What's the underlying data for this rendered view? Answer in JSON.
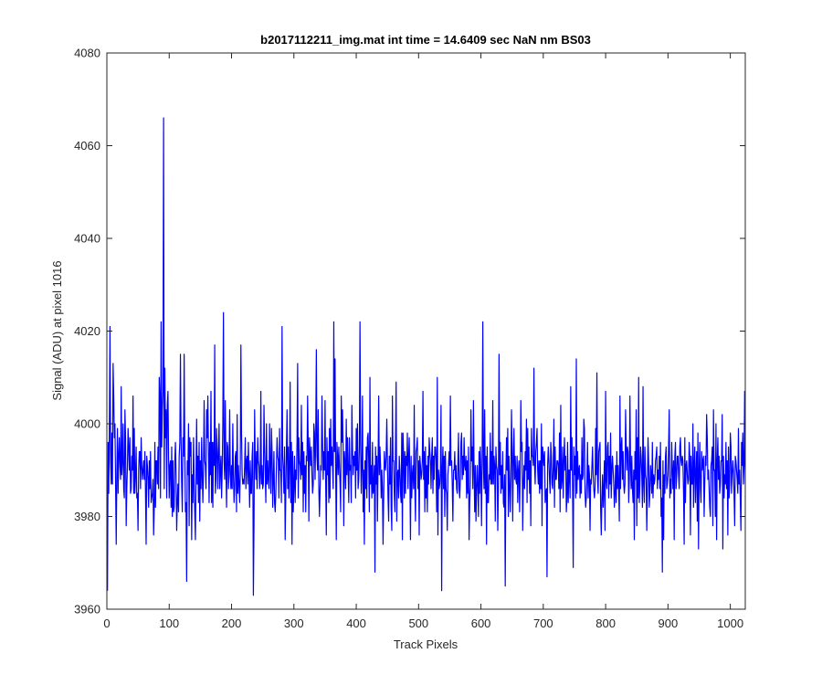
{
  "chart_data": {
    "type": "line",
    "title": "b2017112211_img.mat int time = 14.6409 sec  NaN nm BS03",
    "xlabel": "Track Pixels",
    "ylabel": "Signal (ADU) at pixel 1016",
    "xlim": [
      0,
      1024
    ],
    "ylim": [
      3960,
      4080
    ],
    "xticks": [
      0,
      100,
      200,
      300,
      400,
      500,
      600,
      700,
      800,
      900,
      1000
    ],
    "xtick_labels": [
      "0",
      "100",
      "200",
      "300",
      "400",
      "500",
      "600",
      "700",
      "800",
      "900",
      "1000"
    ],
    "yticks": [
      3960,
      3980,
      4000,
      4020,
      4040,
      4060,
      4080
    ],
    "ytick_labels": [
      "3960",
      "3980",
      "4000",
      "4020",
      "4040",
      "4060",
      "4080"
    ],
    "grid": false,
    "legend": "none",
    "series": [
      {
        "color": "#0000ff",
        "values": [
          3964,
          3996,
          3985,
          3999,
          4021,
          3992,
          3987,
          3998,
          3987,
          4013,
          4006,
          3997,
          4000,
          3987,
          3974,
          3989,
          3999,
          3985,
          3993,
          3997,
          3991,
          3988,
          4008,
          3989,
          3992,
          4000,
          3986,
          3984,
          4003,
          3997,
          3978,
          3986,
          3991,
          3999,
          3995,
          3990,
          3997,
          3985,
          3986,
          3993,
          3990,
          4006,
          3985,
          3999,
          3985,
          3989,
          3995,
          3984,
          3985,
          3977,
          3990,
          3994,
          3994,
          3986,
          3997,
          3991,
          3988,
          3990,
          3992,
          3988,
          3994,
          3985,
          3974,
          3993,
          3991,
          3988,
          3982,
          3992,
          3986,
          3994,
          3983,
          3984,
          3985,
          3988,
          3976,
          3982,
          3996,
          3982,
          3992,
          3992,
          3987,
          3995,
          3986,
          4010,
          4006,
          3984,
          4022,
          3995,
          4003,
          4007,
          4066,
          3986,
          4012,
          3997,
          4003,
          3984,
          4004,
          4007,
          3993,
          3984,
          3991,
          3992,
          3982,
          3995,
          3980,
          3992,
          3981,
          3982,
          3992,
          3996,
          3989,
          3977,
          3983,
          3987,
          3981,
          3993,
          3996,
          4015,
          3997,
          3987,
          3981,
          3997,
          3993,
          4015,
          3994,
          3981,
          3983,
          3966,
          3992,
          3989,
          4000,
          3978,
          3997,
          3993,
          3996,
          3975,
          3989,
          3983,
          3997,
          3987,
          3981,
          3975,
          3989,
          4001,
          3987,
          3993,
          3983,
          3996,
          3979,
          3992,
          3986,
          3997,
          3989,
          3983,
          3991,
          4005,
          3992,
          3991,
          3986,
          4003,
          3997,
          4006,
          3994,
          3983,
          3996,
          3989,
          4007,
          3983,
          3996,
          3982,
          3996,
          3991,
          4017,
          3985,
          3988,
          3999,
          3994,
          3986,
          3994,
          4000,
          3986,
          3990,
          3993,
          3984,
          3990,
          4000,
          4024,
          3992,
          3988,
          4005,
          3990,
          3982,
          3996,
          3995,
          3986,
          3990,
          4003,
          3989,
          3986,
          3991,
          3986,
          4000,
          3989,
          3983,
          3986,
          3993,
          3994,
          3981,
          4002,
          3985,
          3991,
          3987,
          3983,
          3990,
          4017,
          3998,
          3989,
          3987,
          3988,
          3987,
          3991,
          3997,
          3986,
          3992,
          3993,
          3987,
          3996,
          3989,
          3982,
          3992,
          3985,
          3985,
          3993,
          3996,
          3963,
          3978,
          4003,
          3992,
          3988,
          3994,
          3986,
          3997,
          3992,
          3991,
          3986,
          3989,
          4007,
          3987,
          3991,
          3986,
          3987,
          4004,
          3995,
          3989,
          3983,
          4000,
          3987,
          3992,
          3988,
          3986,
          4000,
          3991,
          3985,
          3999,
          3994,
          3982,
          3988,
          3994,
          3983,
          3981,
          3985,
          3991,
          3997,
          3993,
          3992,
          3984,
          3999,
          3990,
          3990,
          3983,
          4021,
          3993,
          3990,
          3985,
          3995,
          3975,
          3985,
          3994,
          4003,
          3986,
          3995,
          3984,
          3991,
          4009,
          3983,
          3996,
          3974,
          3994,
          3981,
          3987,
          3993,
          3983,
          3990,
          3988,
          3996,
          4013,
          3984,
          3997,
          3992,
          3991,
          3988,
          4004,
          3989,
          3996,
          3981,
          3994,
          3985,
          3991,
          3981,
          3993,
          3992,
          4006,
          3995,
          3979,
          3997,
          3994,
          3991,
          3995,
          3989,
          3985,
          3987,
          4000,
          3998,
          3988,
          3997,
          4016,
          3993,
          3990,
          4003,
          3986,
          3980,
          3986,
          3991,
          3990,
          4006,
          3996,
          3988,
          3994,
          3990,
          4005,
          3987,
          3976,
          3997,
          3989,
          3994,
          3983,
          3999,
          3984,
          4001,
          3991,
          3995,
          3991,
          3986,
          4022,
          3994,
          4014,
          3991,
          3975,
          3996,
          3993,
          3989,
          3995,
          3991,
          3987,
          3981,
          4006,
          3996,
          4003,
          3995,
          3978,
          3994,
          3991,
          3986,
          4001,
          3989,
          3997,
          3990,
          3983,
          3997,
          3990,
          3991,
          3983,
          4004,
          3995,
          3989,
          3993,
          3991,
          3994,
          3984,
          3999,
          3990,
          4000,
          3986,
          3988,
          3995,
          4022,
          3995,
          3985,
          3991,
          4006,
          3981,
          3990,
          3974,
          3992,
          3986,
          3995,
          3984,
          3997,
          3998,
          3992,
          3981,
          4010,
          3987,
          3991,
          3984,
          3996,
          3985,
          3986,
          3991,
          3968,
          3995,
          3987,
          3993,
          3979,
          3991,
          4006,
          3989,
          3995,
          3991,
          3984,
          3990,
          3986,
          3974,
          3984,
          3994,
          3991,
          3990,
          3993,
          4001,
          3992,
          3984,
          3979,
          3993,
          3987,
          3997,
          3982,
          3977,
          4006,
          3992,
          3992,
          3985,
          3981,
          3995,
          4009,
          3979,
          3989,
          3990,
          3984,
          3993,
          3990,
          3985,
          3983,
          3998,
          3975,
          3998,
          3993,
          3984,
          3994,
          3985,
          3993,
          3991,
          3998,
          3986,
          3993,
          3997,
          3989,
          3975,
          3993,
          3984,
          3989,
          3991,
          3986,
          4004,
          3986,
          3979,
          3994,
          3995,
          3997,
          3986,
          3992,
          3976,
          3993,
          3991,
          3988,
          3989,
          3992,
          4007,
          3988,
          3994,
          3981,
          3995,
          3984,
          3991,
          3981,
          3993,
          3987,
          3997,
          3994,
          3992,
          3986,
          3993,
          3997,
          3985,
          3993,
          3988,
          3995,
          3995,
          3992,
          3981,
          4010,
          3976,
          3990,
          3986,
          3987,
          3990,
          4004,
          3964,
          3990,
          3995,
          3986,
          3993,
          3980,
          3994,
          3986,
          3985,
          3977,
          3989,
          3991,
          3994,
          3991,
          4006,
          3991,
          3992,
          3987,
          3979,
          3990,
          3990,
          3994,
          3988,
          3991,
          3986,
          3985,
          3991,
          3998,
          3986,
          3984,
          3988,
          3996,
          3998,
          3988,
          3993,
          3989,
          3997,
          3991,
          3990,
          3993,
          3984,
          3992,
          3985,
          3995,
          3975,
          3983,
          3987,
          4003,
          3992,
          3995,
          3986,
          4005,
          3990,
          3981,
          3991,
          3979,
          3986,
          3991,
          3986,
          3980,
          3994,
          3985,
          3995,
          3989,
          3978,
          3994,
          4022,
          3991,
          3986,
          4003,
          3985,
          3993,
          3974,
          3995,
          3983,
          3983,
          3989,
          3988,
          3998,
          3987,
          3994,
          3987,
          4005,
          3987,
          3993,
          3991,
          3979,
          3995,
          3991,
          3990,
          3977,
          3986,
          4015,
          3989,
          3996,
          3985,
          3991,
          3986,
          3994,
          3983,
          3982,
          3989,
          3965,
          3989,
          3997,
          3990,
          3999,
          3980,
          3993,
          3987,
          3981,
          3988,
          4003,
          3994,
          3979,
          3993,
          3999,
          3988,
          3993,
          3988,
          3987,
          3993,
          3983,
          3990,
          3992,
          3981,
          3989,
          4005,
          3994,
          3996,
          3977,
          3987,
          3991,
          3986,
          3994,
          3990,
          4001,
          3983,
          3999,
          3988,
          3995,
          3985,
          3992,
          3978,
          3999,
          3993,
          3993,
          3991,
          4012,
          3991,
          3987,
          3994,
          3996,
          3999,
          3990,
          3987,
          3992,
          3985,
          3992,
          3986,
          4000,
          3978,
          3995,
          3993,
          3991,
          3994,
          3983,
          3985,
          3986,
          3967,
          3991,
          3995,
          3992,
          3988,
          3985,
          3996,
          3993,
          3987,
          3986,
          3991,
          4001,
          3982,
          3995,
          3988,
          3988,
          3992,
          3992,
          3991,
          3986,
          3998,
          3981,
          4004,
          3986,
          3988,
          3995,
          3984,
          3992,
          3997,
          3990,
          3993,
          3981,
          3984,
          3996,
          3983,
          3990,
          3990,
          3984,
          4008,
          3990,
          3997,
          3986,
          3969,
          3995,
          3989,
          3993,
          3984,
          4014,
          3985,
          3994,
          3988,
          3990,
          3991,
          3984,
          3989,
          3985,
          3997,
          3988,
          3989,
          4001,
          3999,
          3985,
          3982,
          3984,
          3988,
          3996,
          3984,
          3991,
          3989,
          3977,
          3988,
          3987,
          3991,
          3995,
          3989,
          3986,
          3984,
          3986,
          3999,
          3989,
          4011,
          3988,
          3985,
          3994,
          3995,
          3996,
          3982,
          3976,
          3984,
          3989,
          3982,
          3986,
          3992,
          3977,
          4007,
          3988,
          3986,
          3995,
          3996,
          3984,
          3993,
          3987,
          3998,
          3984,
          3990,
          3993,
          3990,
          3987,
          3982,
          3985,
          3991,
          3983,
          3994,
          3986,
          3991,
          3986,
          3979,
          4006,
          3986,
          3995,
          3997,
          3988,
          3994,
          3987,
          3985,
          3987,
          4003,
          3995,
          3990,
          3995,
          3994,
          3983,
          3988,
          4006,
          3991,
          3986,
          3993,
          3986,
          3983,
          3990,
          3975,
          3994,
          3988,
          4003,
          3978,
          3997,
          3984,
          4010,
          3983,
          3987,
          3995,
          3993,
          3989,
          3982,
          4008,
          3987,
          3983,
          3995,
          3989,
          3988,
          3977,
          3986,
          3997,
          3992,
          3982,
          3985,
          3991,
          3989,
          3985,
          3996,
          3984,
          3989,
          3987,
          3988,
          3992,
          3993,
          3995,
          3986,
          3990,
          3988,
          3993,
          3986,
          3996,
          3980,
          3984,
          3968,
          3992,
          3975,
          3989,
          3985,
          3993,
          3995,
          3986,
          3987,
          3989,
          3995,
          4003,
          3984,
          3988,
          3985,
          3996,
          3990,
          3986,
          3992,
          3975,
          3993,
          3996,
          3986,
          3989,
          3993,
          3993,
          3989,
          3986,
          3995,
          3997,
          3992,
          3991,
          3993,
          3992,
          3985,
          3974,
          3997,
          3983,
          3991,
          3992,
          3989,
          3987,
          3988,
          3996,
          3993,
          3976,
          3993,
          3987,
          3987,
          4000,
          3982,
          3991,
          3995,
          3983,
          3989,
          3994,
          3979,
          3998,
          3973,
          3990,
          3996,
          3986,
          3983,
          3994,
          3990,
          3992,
          3993,
          3980,
          3987,
          3993,
          3991,
          4002,
          3997,
          3988,
          3990,
          3986,
          3982,
          3980,
          3991,
          3992,
          3995,
          3978,
          4003,
          3990,
          3990,
          3980,
          4000,
          3975,
          3992,
          3997,
          3988,
          3993,
          3985,
          3987,
          3992,
          3992,
          4002,
          3973,
          3993,
          3984,
          3989,
          3987,
          3996,
          3986,
          3992,
          3976,
          3995,
          3984,
          3987,
          3998,
          3995,
          3985,
          3989,
          3992,
          3990,
          3985,
          3978,
          3993,
          3992,
          3990,
          3988,
          3985,
          3999,
          3987,
          3990,
          3984,
          3977,
          3996,
          3991,
          3998,
          3987,
          3991,
          4007,
          3987,
          3993,
          3986,
          3979,
          3982,
          3987,
          3991,
          3990,
          3984,
          3994,
          3997,
          3995,
          3988,
          3984,
          3983,
          3987,
          3993,
          3984,
          3991,
          3974,
          3994,
          3978,
          3988,
          3997,
          3989,
          3990,
          4001,
          3975,
          3989,
          3985,
          3990,
          3978,
          3996,
          3992,
          3990,
          3991,
          3980,
          3986,
          3977,
          3980,
          3992,
          3994,
          3974,
          3988,
          3991,
          3991,
          3982,
          3990,
          3986,
          3975,
          3990,
          3993,
          3988,
          3990,
          3986,
          4002,
          3988,
          3985,
          3976,
          3990,
          3990,
          3979,
          3989,
          3983,
          3990,
          3984,
          4005,
          3994,
          4000,
          3980,
          4001,
          3987,
          3993,
          3996,
          3998,
          3984,
          4002,
          3992,
          3991,
          3994,
          3992,
          4003,
          3990
        ]
      }
    ]
  }
}
